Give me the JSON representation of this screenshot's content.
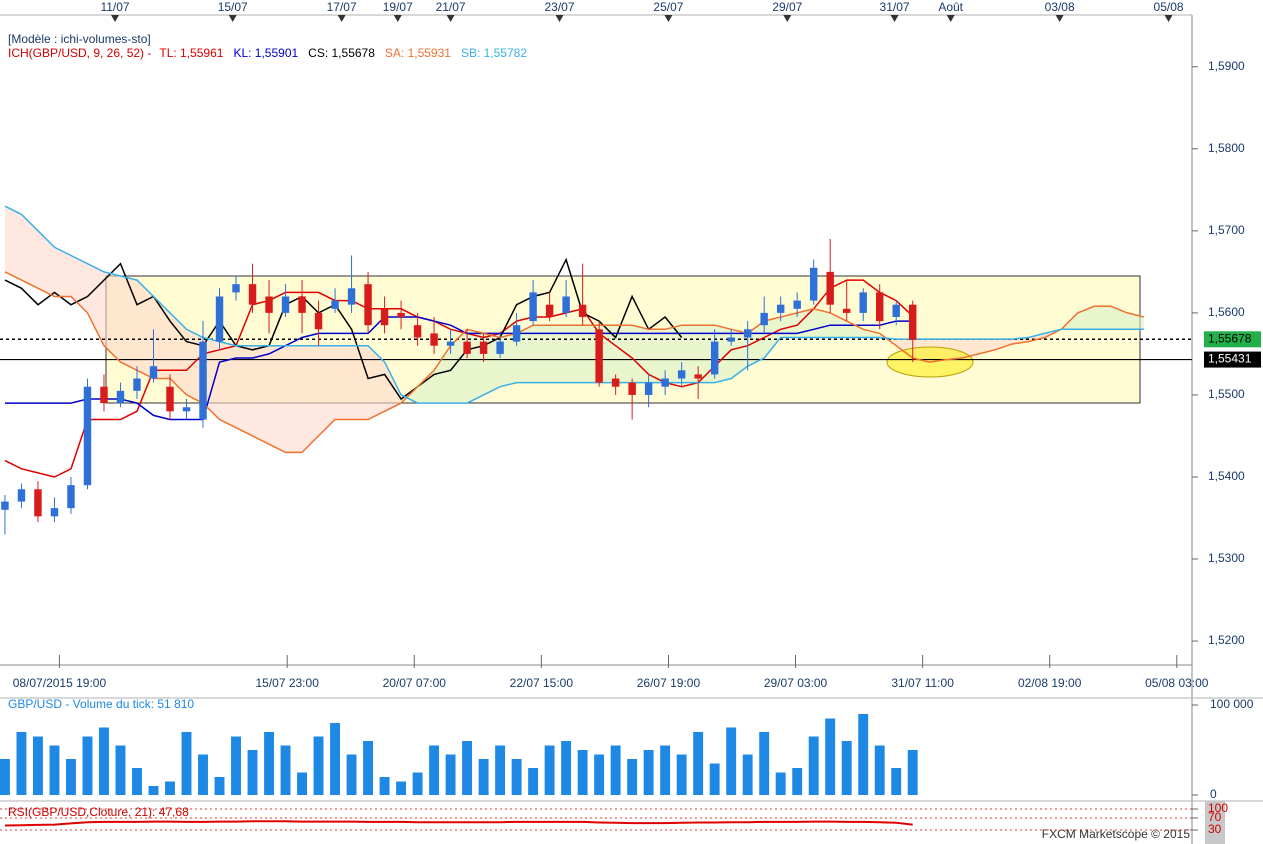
{
  "chart_data": [
    {
      "type": "candlestick",
      "title": "[Modèle : ichi-volumes-sto]",
      "subtitle": "ICH(GBP/USD, 9, 26, 52) -",
      "up_color": "#2f6fd8",
      "down_color": "#d81c1c",
      "open": [
        1.536,
        1.537,
        1.5385,
        1.5352,
        1.5362,
        1.539,
        1.551,
        1.549,
        1.5505,
        1.552,
        1.551,
        1.548,
        1.547,
        1.5565,
        1.5625,
        1.5635,
        1.562,
        1.56,
        1.562,
        1.56,
        1.5605,
        1.561,
        1.5635,
        1.5605,
        1.56,
        1.5585,
        1.5575,
        1.556,
        1.5565,
        1.5565,
        1.555,
        1.5565,
        1.559,
        1.561,
        1.56,
        1.561,
        1.558,
        1.552,
        1.5515,
        1.55,
        1.551,
        1.552,
        1.5525,
        1.5525,
        1.5565,
        1.557,
        1.5585,
        1.56,
        1.5605,
        1.5615,
        1.565,
        1.5605,
        1.56,
        1.5625,
        1.5595,
        1.561
      ],
      "high": [
        1.5378,
        1.5392,
        1.5395,
        1.5375,
        1.54,
        1.552,
        1.5525,
        1.5515,
        1.5535,
        1.558,
        1.5525,
        1.5495,
        1.559,
        1.563,
        1.5645,
        1.566,
        1.564,
        1.5635,
        1.564,
        1.5615,
        1.563,
        1.567,
        1.565,
        1.562,
        1.5615,
        1.56,
        1.5595,
        1.558,
        1.558,
        1.5575,
        1.5575,
        1.56,
        1.564,
        1.5625,
        1.564,
        1.566,
        1.559,
        1.5525,
        1.552,
        1.5525,
        1.553,
        1.554,
        1.5535,
        1.558,
        1.558,
        1.559,
        1.562,
        1.562,
        1.5625,
        1.5665,
        1.569,
        1.564,
        1.563,
        1.5635,
        1.5615,
        1.5615
      ],
      "low": [
        1.533,
        1.5362,
        1.5345,
        1.5345,
        1.5355,
        1.5385,
        1.548,
        1.5485,
        1.5495,
        1.5515,
        1.547,
        1.547,
        1.546,
        1.5555,
        1.5615,
        1.56,
        1.5575,
        1.5595,
        1.5575,
        1.556,
        1.56,
        1.56,
        1.5575,
        1.5575,
        1.558,
        1.556,
        1.555,
        1.555,
        1.5545,
        1.554,
        1.5545,
        1.556,
        1.5585,
        1.559,
        1.5595,
        1.5585,
        1.551,
        1.55,
        1.547,
        1.5485,
        1.55,
        1.551,
        1.5495,
        1.552,
        1.556,
        1.553,
        1.5575,
        1.559,
        1.5595,
        1.561,
        1.56,
        1.559,
        1.559,
        1.558,
        1.5585,
        1.554
      ],
      "close": [
        1.537,
        1.5385,
        1.5352,
        1.5362,
        1.539,
        1.551,
        1.549,
        1.5505,
        1.552,
        1.5535,
        1.548,
        1.5485,
        1.5565,
        1.562,
        1.5635,
        1.561,
        1.56,
        1.562,
        1.56,
        1.558,
        1.5615,
        1.563,
        1.5585,
        1.5585,
        1.5595,
        1.557,
        1.556,
        1.5565,
        1.555,
        1.555,
        1.5565,
        1.5585,
        1.5625,
        1.5595,
        1.562,
        1.5595,
        1.5515,
        1.551,
        1.55,
        1.5515,
        1.552,
        1.553,
        1.552,
        1.5565,
        1.557,
        1.558,
        1.56,
        1.561,
        1.5615,
        1.5655,
        1.561,
        1.56,
        1.5625,
        1.559,
        1.561,
        1.5567
      ],
      "series": [
        {
          "name": "TL: 1,55961",
          "color": "#e00000",
          "values": [
            1.542,
            1.541,
            1.5405,
            1.54,
            1.541,
            1.547,
            1.547,
            1.547,
            1.548,
            1.553,
            1.553,
            1.553,
            1.555,
            1.5555,
            1.556,
            1.561,
            1.5615,
            1.5625,
            1.5625,
            1.5625,
            1.5615,
            1.5615,
            1.5605,
            1.5605,
            1.5605,
            1.5595,
            1.559,
            1.558,
            1.5575,
            1.557,
            1.5575,
            1.559,
            1.5595,
            1.5595,
            1.56,
            1.5605,
            1.5575,
            1.556,
            1.5545,
            1.5525,
            1.5515,
            1.551,
            1.5515,
            1.5535,
            1.5555,
            1.556,
            1.557,
            1.558,
            1.5585,
            1.5605,
            1.563,
            1.564,
            1.564,
            1.5625,
            1.5615,
            1.5596,
            null,
            null,
            null,
            null,
            null,
            null,
            null,
            null,
            null,
            null,
            null,
            null,
            null,
            null
          ]
        },
        {
          "name": "KL: 1,55901",
          "color": "#0000cc",
          "values": [
            1.549,
            1.549,
            1.549,
            1.549,
            1.549,
            1.5495,
            1.5495,
            1.5495,
            1.549,
            1.5475,
            1.547,
            1.547,
            1.547,
            1.554,
            1.5545,
            1.5545,
            1.555,
            1.556,
            1.557,
            1.5575,
            1.5575,
            1.5575,
            1.5575,
            1.5595,
            1.5595,
            1.5595,
            1.559,
            1.5585,
            1.5575,
            1.5575,
            1.5575,
            1.5575,
            1.5575,
            1.5575,
            1.5575,
            1.5575,
            1.5575,
            1.5575,
            1.5575,
            1.5575,
            1.5575,
            1.5575,
            1.5575,
            1.5575,
            1.5575,
            1.5575,
            1.5575,
            1.5575,
            1.5575,
            1.558,
            1.5585,
            1.5585,
            1.5585,
            1.5585,
            1.559,
            1.559,
            null,
            null,
            null,
            null,
            null,
            null,
            null,
            null,
            null,
            null,
            null,
            null,
            null,
            null
          ]
        },
        {
          "name": "CS: 1,55678",
          "color": "#000000",
          "values": [
            1.564,
            1.563,
            1.561,
            1.5625,
            1.561,
            1.562,
            1.564,
            1.566,
            1.561,
            1.562,
            1.559,
            1.5565,
            1.556,
            1.559,
            1.556,
            1.5555,
            1.556,
            1.561,
            1.562,
            1.56,
            1.561,
            1.558,
            1.552,
            1.5525,
            1.5495,
            1.551,
            1.5525,
            1.553,
            1.5555,
            1.556,
            1.557,
            1.561,
            1.562,
            1.5625,
            1.5665,
            1.56,
            1.559,
            1.557,
            1.562,
            1.558,
            1.5595,
            1.557,
            null,
            null,
            null,
            null,
            null,
            null,
            null,
            null,
            null,
            null,
            null,
            null,
            null,
            null,
            null,
            null,
            null,
            null,
            null,
            null,
            null,
            null,
            null,
            null,
            null,
            null,
            null,
            null
          ]
        },
        {
          "name": "SA: 1,55931",
          "color": "#f07030",
          "values": [
            1.565,
            1.564,
            1.563,
            1.562,
            1.562,
            1.56,
            1.556,
            1.554,
            1.553,
            1.552,
            1.552,
            1.55,
            1.549,
            1.547,
            1.546,
            1.545,
            1.544,
            1.543,
            1.543,
            1.545,
            1.547,
            1.547,
            1.547,
            1.548,
            1.549,
            1.551,
            1.553,
            1.556,
            1.558,
            1.5575,
            1.557,
            1.5575,
            1.5585,
            1.5585,
            1.5585,
            1.5585,
            1.5585,
            1.5585,
            1.5585,
            1.558,
            1.558,
            1.5585,
            1.5585,
            1.5585,
            1.558,
            1.5575,
            1.559,
            1.5595,
            1.56,
            1.5605,
            1.56,
            1.559,
            1.558,
            1.5575,
            1.556,
            1.5545,
            1.554,
            1.5543,
            1.5545,
            1.555,
            1.5555,
            1.5562,
            1.5565,
            1.557,
            1.558,
            1.56,
            1.5608,
            1.5608,
            1.56,
            1.5595
          ]
        },
        {
          "name": "SB: 1,55782",
          "color": "#3ab0e8",
          "values": [
            1.573,
            1.572,
            1.57,
            1.568,
            1.567,
            1.566,
            1.565,
            1.5645,
            1.564,
            1.562,
            1.56,
            1.558,
            1.557,
            1.5565,
            1.556,
            1.556,
            1.556,
            1.556,
            1.556,
            1.556,
            1.556,
            1.556,
            1.556,
            1.554,
            1.55,
            1.549,
            1.549,
            1.549,
            1.549,
            1.55,
            1.551,
            1.5515,
            1.5515,
            1.5515,
            1.5515,
            1.5515,
            1.5515,
            1.5515,
            1.5515,
            1.5515,
            1.5515,
            1.5515,
            1.5515,
            1.5515,
            1.552,
            1.5535,
            1.5545,
            1.557,
            1.557,
            1.557,
            1.557,
            1.557,
            1.557,
            1.557,
            1.5568,
            1.5568,
            1.5568,
            1.5568,
            1.5568,
            1.5568,
            1.5568,
            1.5568,
            1.557,
            1.5575,
            1.558,
            1.558,
            1.558,
            1.558,
            1.558,
            1.558
          ]
        }
      ],
      "xlim": [
        -0.3,
        71.8
      ],
      "xticks": [
        {
          "value": 6.67,
          "label": "11/07"
        },
        {
          "value": 13.8,
          "label": "15/07"
        },
        {
          "value": 20.4,
          "label": "17/07"
        },
        {
          "value": 23.8,
          "label": "19/07"
        },
        {
          "value": 27.0,
          "label": "21/07"
        },
        {
          "value": 33.6,
          "label": "23/07"
        },
        {
          "value": 40.2,
          "label": "25/07"
        },
        {
          "value": 47.4,
          "label": "29/07"
        },
        {
          "value": 53.9,
          "label": "31/07"
        },
        {
          "value": 57.3,
          "label": "Août"
        },
        {
          "value": 63.9,
          "label": "03/08"
        },
        {
          "value": 70.5,
          "label": "05/08"
        }
      ],
      "xticks_bottom": [
        {
          "value": 3.3,
          "label": "08/07/2015 19:00"
        },
        {
          "value": 17.1,
          "label": "15/07 23:00"
        },
        {
          "value": 24.8,
          "label": "20/07 07:00"
        },
        {
          "value": 32.5,
          "label": "22/07 15:00"
        },
        {
          "value": 40.2,
          "label": "26/07 19:00"
        },
        {
          "value": 47.9,
          "label": "29/07 03:00"
        },
        {
          "value": 55.6,
          "label": "31/07 11:00"
        },
        {
          "value": 63.3,
          "label": "02/08 19:00"
        },
        {
          "value": 71.0,
          "label": "05/08 03:00"
        }
      ],
      "ylim": [
        1.5183,
        1.5957
      ],
      "yticks": [
        {
          "value": 1.52,
          "label": "1,5200"
        },
        {
          "value": 1.53,
          "label": "1,5300"
        },
        {
          "value": 1.54,
          "label": "1,5400"
        },
        {
          "value": 1.55,
          "label": "1,5500"
        },
        {
          "value": 1.56,
          "label": "1,5600"
        },
        {
          "value": 1.57,
          "label": "1,5700"
        },
        {
          "value": 1.58,
          "label": "1,5800"
        },
        {
          "value": 1.59,
          "label": "1,5900"
        }
      ],
      "price_lines": [
        {
          "value": 1.55678,
          "label": "1,55678",
          "color": "#22b04a"
        },
        {
          "value": 1.55431,
          "label": "1,55431",
          "color": "#000000"
        }
      ]
    },
    {
      "type": "bar",
      "title": "GBP/USD - Volume du tick: 51 810",
      "color": "#1e88e5",
      "values": [
        40000,
        70000,
        65000,
        55000,
        40000,
        65000,
        75000,
        55000,
        30000,
        10000,
        15000,
        70000,
        45000,
        20000,
        65000,
        50000,
        70000,
        55000,
        25000,
        65000,
        80000,
        45000,
        60000,
        20000,
        15000,
        25000,
        55000,
        45000,
        60000,
        40000,
        55000,
        40000,
        30000,
        55000,
        60000,
        50000,
        45000,
        55000,
        40000,
        50000,
        55000,
        45000,
        70000,
        35000,
        75000,
        45000,
        70000,
        25000,
        30000,
        65000,
        85000,
        60000,
        90000,
        55000,
        30000,
        50000
      ],
      "xlim": [
        -0.3,
        71.8
      ],
      "ylim": [
        0,
        100000
      ],
      "yticks": [
        0,
        {
          "value": 100000,
          "label": "100 000"
        }
      ]
    },
    {
      "type": "line",
      "title": "RSI(GBP/USD,Cloture, 21): 47,68",
      "color": "#dd0000",
      "values": [
        45,
        46,
        47,
        48,
        52,
        56,
        57,
        57,
        57,
        58,
        58,
        57,
        57,
        58,
        58,
        59,
        59,
        59,
        58,
        58,
        58,
        58,
        57,
        57,
        57,
        56,
        56,
        56,
        56,
        56,
        56,
        57,
        57,
        57,
        57,
        57,
        55,
        54,
        53,
        53,
        53,
        54,
        55,
        55,
        56,
        56,
        57,
        57,
        57,
        58,
        58,
        57,
        57,
        56,
        54,
        48
      ],
      "xlim": [
        -0.3,
        71.8
      ],
      "ylim": [
        0,
        100
      ],
      "yticks": [
        30,
        70,
        100
      ],
      "footer": "FXCM Marketscope © 2015"
    }
  ]
}
